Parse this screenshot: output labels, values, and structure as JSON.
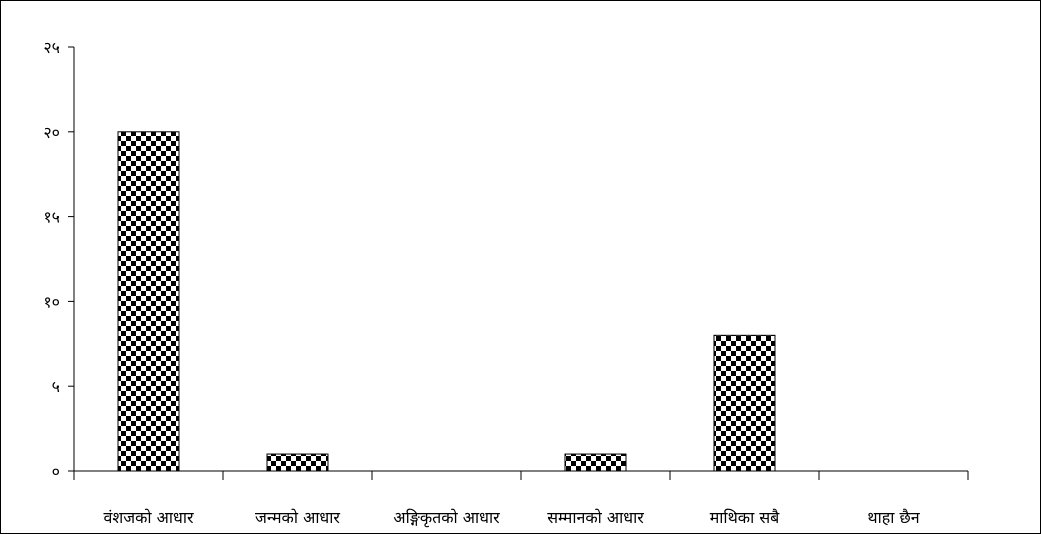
{
  "chart_data": {
    "type": "bar",
    "categories": [
      "वंशजको आधार",
      "जन्मको आधार",
      "अङ्गिकृतको आधार",
      "सम्मानको आधार",
      "माथिका सबै",
      "थाहा छैन"
    ],
    "values": [
      20,
      1,
      0,
      1,
      8,
      0
    ],
    "ylim": [
      0,
      25
    ],
    "yticks": [
      0,
      5,
      10,
      15,
      20,
      25
    ],
    "ytick_labels": [
      "०",
      "५",
      "१०",
      "१५",
      "२०",
      "२५"
    ],
    "title": "",
    "xlabel": "",
    "ylabel": "",
    "grid": false,
    "bar_pattern": "checkerboard",
    "colors": {
      "bar_dark": "#000000",
      "bar_light": "#ffffff",
      "axis": "#000000"
    }
  }
}
